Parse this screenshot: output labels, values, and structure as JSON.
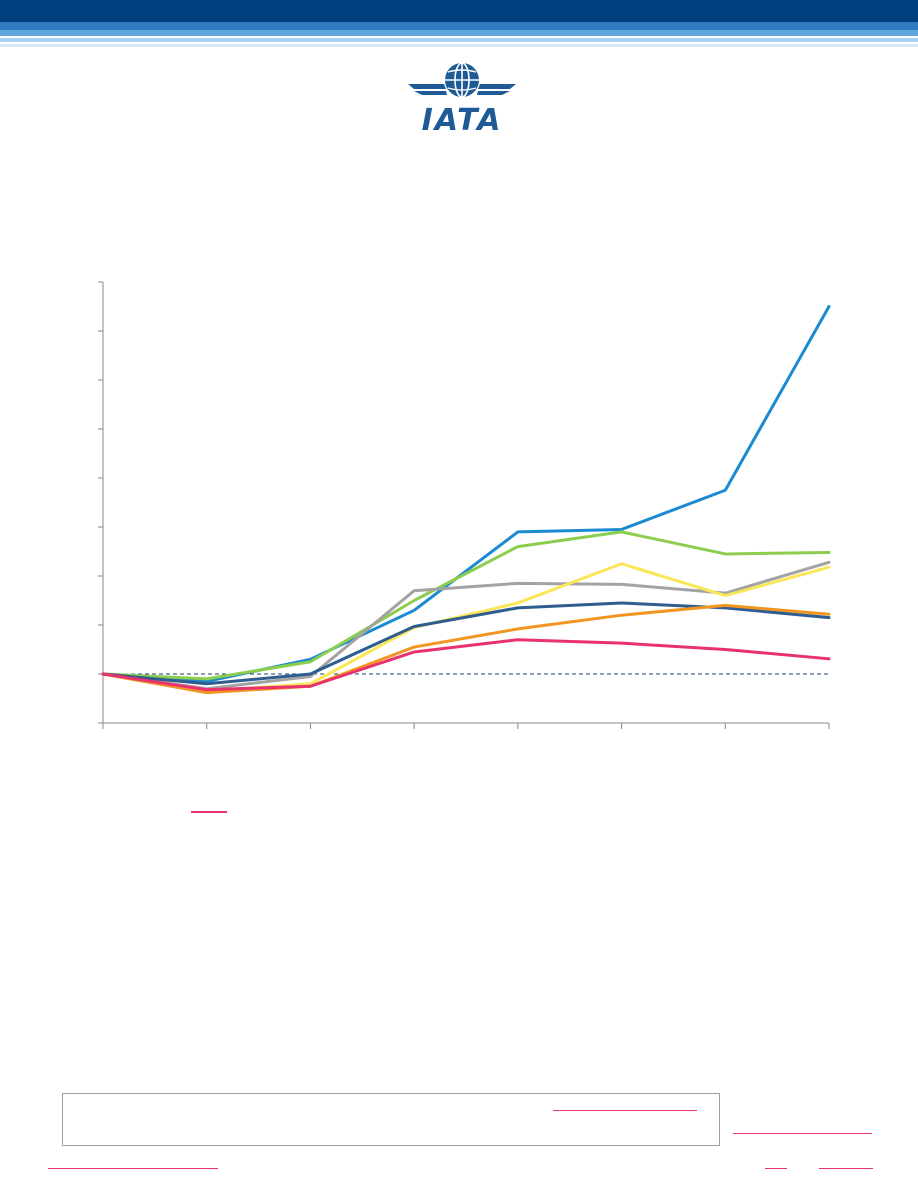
{
  "logo": {
    "text": "IATA"
  },
  "colors": {
    "header_dark": "#003f7d",
    "header_mid": "#2f7cc1",
    "header_light": "#a9d2f0",
    "accent_pink": "#e8326e",
    "axis": "#888888",
    "baseline": "#1f3f6e"
  },
  "chart_data": {
    "type": "line",
    "title": "",
    "xlabel": "",
    "ylabel": "",
    "x": [
      1,
      2,
      3,
      4,
      5,
      6,
      7,
      8
    ],
    "ylim": [
      -1,
      8
    ],
    "baseline": 0,
    "grid": false,
    "series": [
      {
        "color": "#1b8ad1",
        "values": [
          0,
          -0.15,
          0.3,
          1.3,
          2.9,
          2.95,
          3.75,
          7.5
        ]
      },
      {
        "color": "#8ccd4e",
        "values": [
          0,
          -0.1,
          0.25,
          1.5,
          2.6,
          2.9,
          2.45,
          2.48
        ]
      },
      {
        "color": "#a3a3a3",
        "values": [
          0,
          -0.3,
          -0.05,
          1.7,
          1.85,
          1.83,
          1.65,
          2.28
        ]
      },
      {
        "color": "#fbe658",
        "values": [
          0,
          -0.35,
          -0.2,
          0.95,
          1.45,
          2.25,
          1.6,
          2.18
        ]
      },
      {
        "color": "#2f5d8f",
        "values": [
          0,
          -0.2,
          0.0,
          0.97,
          1.35,
          1.45,
          1.35,
          1.15
        ]
      },
      {
        "color": "#f39521",
        "values": [
          0,
          -0.38,
          -0.25,
          0.55,
          0.92,
          1.2,
          1.4,
          1.22
        ]
      },
      {
        "color": "#e8326e",
        "values": [
          0,
          -0.32,
          -0.25,
          0.45,
          0.7,
          0.63,
          0.5,
          0.31
        ]
      }
    ]
  }
}
